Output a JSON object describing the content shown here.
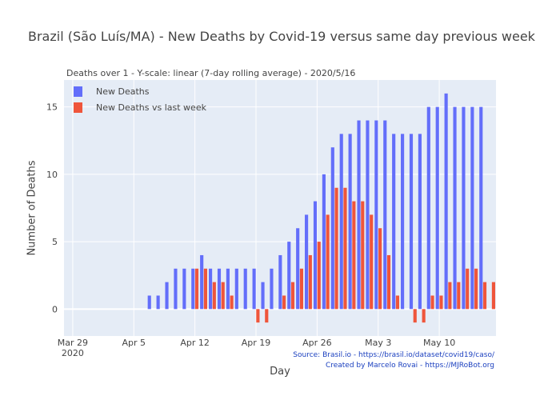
{
  "chart_data": {
    "type": "bar",
    "title": "Brazil (São Luís/MA) - New Deaths by Covid-19 versus same day previous week",
    "subtitle": "Deaths over 1 - Y-scale: linear (7-day rolling average) - 2020/5/16",
    "xlabel": "Day",
    "ylabel": "Number of Deaths",
    "ylim": [
      -2,
      17
    ],
    "yticks": [
      0,
      5,
      10,
      15
    ],
    "xticks": [
      {
        "day": 0,
        "label": "Mar 29",
        "sublabel": "2020"
      },
      {
        "day": 7,
        "label": "Apr 5"
      },
      {
        "day": 14,
        "label": "Apr 12"
      },
      {
        "day": 21,
        "label": "Apr 19"
      },
      {
        "day": 28,
        "label": "Apr 26"
      },
      {
        "day": 35,
        "label": "May 3"
      },
      {
        "day": 42,
        "label": "May 10"
      }
    ],
    "x": [
      0,
      1,
      2,
      3,
      4,
      5,
      6,
      7,
      8,
      9,
      10,
      11,
      12,
      13,
      14,
      15,
      16,
      17,
      18,
      19,
      20,
      21,
      22,
      23,
      24,
      25,
      26,
      27,
      28,
      29,
      30,
      31,
      32,
      33,
      34,
      35,
      36,
      37,
      38,
      39,
      40,
      41,
      42,
      43,
      44,
      45,
      46,
      47,
      48
    ],
    "grid": true,
    "legend_position": "top-left",
    "series": [
      {
        "name": "New Deaths",
        "color": "#636efa",
        "values": [
          0,
          0,
          0,
          0,
          0,
          0,
          0,
          0,
          0,
          1,
          1,
          2,
          3,
          3,
          3,
          4,
          3,
          3,
          3,
          3,
          3,
          3,
          2,
          3,
          4,
          5,
          6,
          7,
          8,
          10,
          12,
          13,
          13,
          14,
          14,
          14,
          14,
          13,
          13,
          13,
          13,
          15,
          15,
          16,
          15,
          15,
          15,
          15,
          0
        ]
      },
      {
        "name": "New Deaths vs last week",
        "color": "#ef553b",
        "values": [
          0,
          0,
          0,
          0,
          0,
          0,
          0,
          0,
          0,
          0,
          0,
          0,
          0,
          0,
          3,
          3,
          2,
          2,
          1,
          0,
          0,
          -1,
          -1,
          0,
          1,
          2,
          3,
          4,
          5,
          7,
          9,
          9,
          8,
          8,
          7,
          6,
          4,
          1,
          0,
          -1,
          -1,
          1,
          1,
          2,
          2,
          3,
          3,
          2,
          2
        ]
      }
    ]
  },
  "footer": {
    "source": "Source: Brasil.io - https://brasil.io/dataset/covid19/caso/",
    "credit": "Created by Marcelo Rovai - https://MJRoBot.org"
  }
}
